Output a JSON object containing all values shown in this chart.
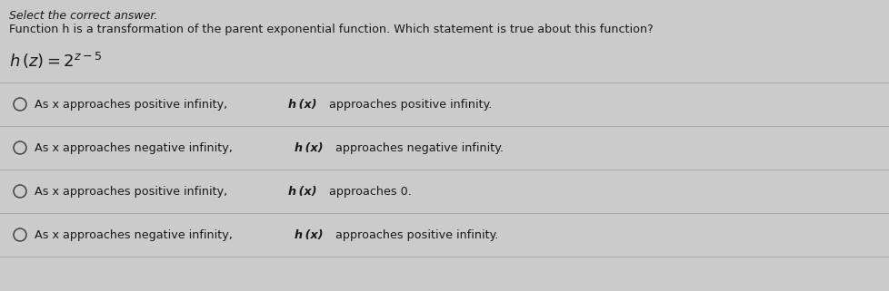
{
  "bg_color": "#cbcbcb",
  "text_color": "#1a1a1a",
  "divider_color": "#aaaaaa",
  "circle_color": "#444444",
  "title_line1": "Select the correct answer.",
  "title_line2": "Function h is a transformation of the parent exponential function. Which statement is true about this function?",
  "options_before": [
    "As x approaches positive infinity, ",
    "As x approaches negative infinity, ",
    "As x approaches positive infinity, ",
    "As x approaches negative infinity, "
  ],
  "options_after": [
    " approaches positive infinity.",
    " approaches negative infinity.",
    " approaches 0.",
    " approaches positive infinity."
  ],
  "bold_italic_part": "h (x)",
  "font_size_header": 9.0,
  "font_size_question": 9.2,
  "font_size_function": 13,
  "font_size_option": 9.2
}
